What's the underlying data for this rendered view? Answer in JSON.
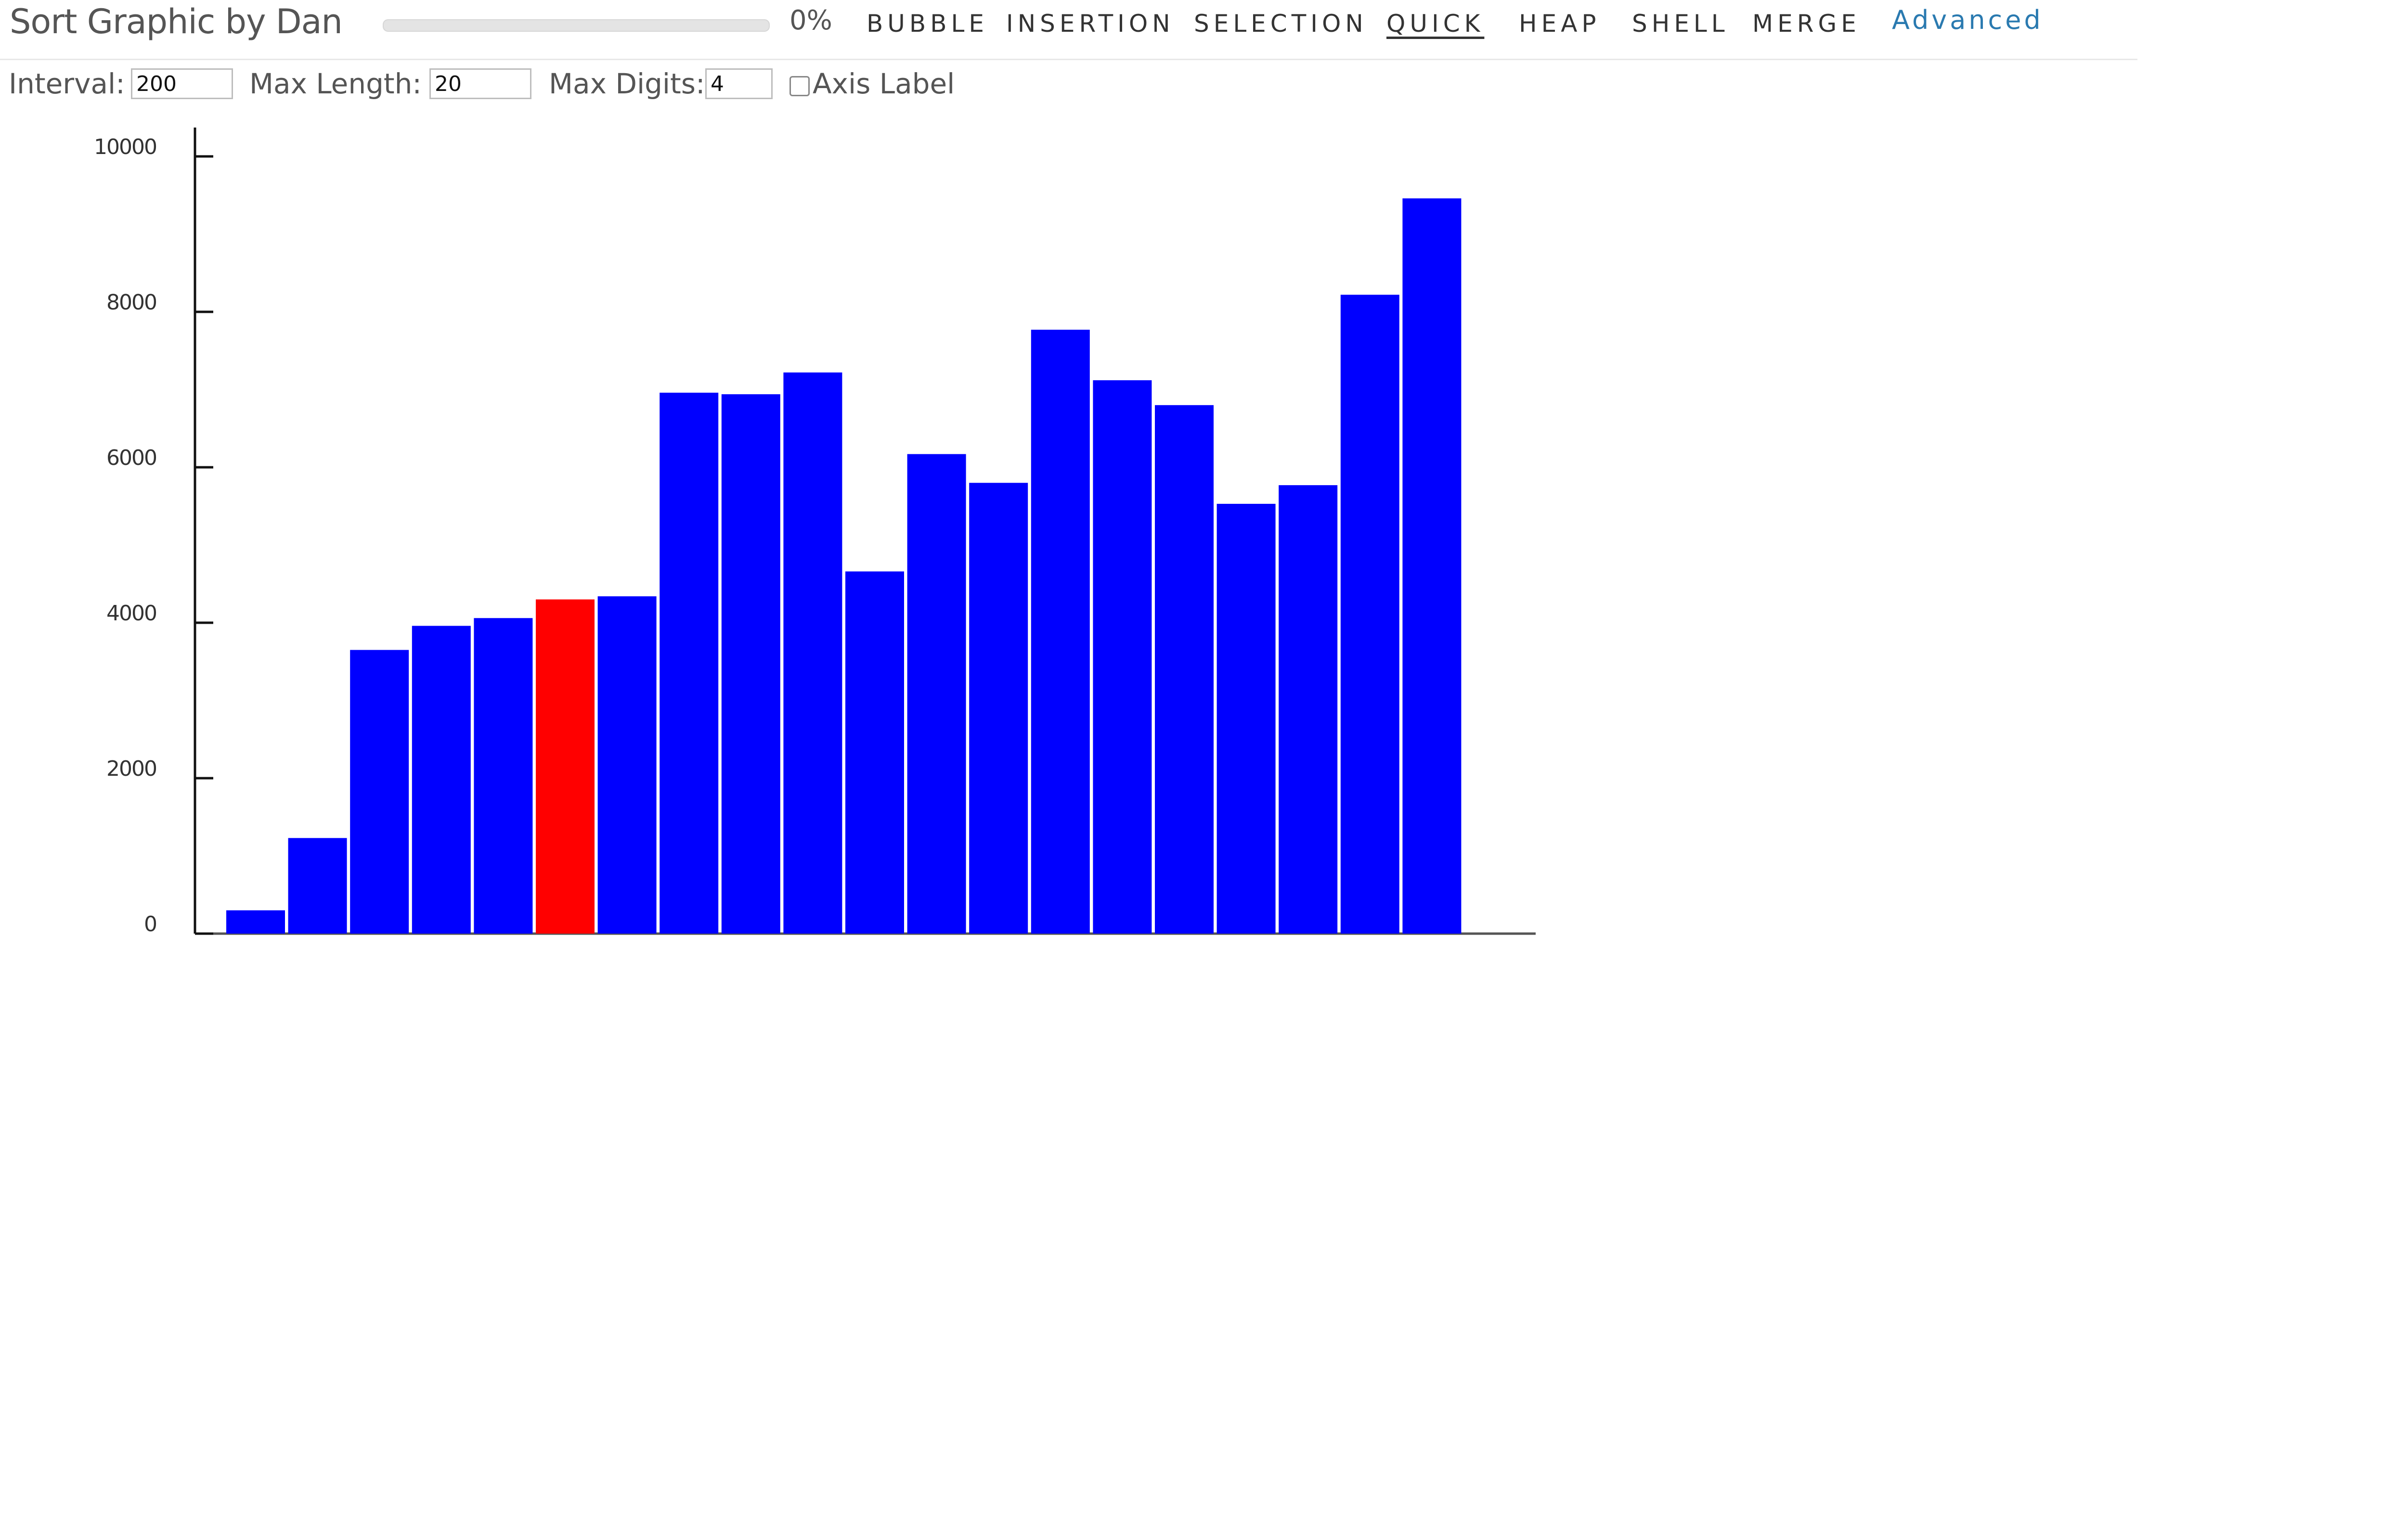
{
  "header": {
    "title": "Sort Graphic by Dan",
    "progress_value": 0,
    "progress_text": "0%",
    "nav": [
      {
        "label": "BUBBLE",
        "active": false
      },
      {
        "label": "INSERTION",
        "active": false
      },
      {
        "label": "SELECTION",
        "active": false
      },
      {
        "label": "QUICK",
        "active": true
      },
      {
        "label": "HEAP",
        "active": false
      },
      {
        "label": "SHELL",
        "active": false
      },
      {
        "label": "MERGE",
        "active": false
      }
    ],
    "advanced_label": "Advanced"
  },
  "controls": {
    "interval_label": "Interval:",
    "interval_value": "200",
    "max_length_label": "Max Length:",
    "max_length_value": "20",
    "max_digits_label": "Max Digits:",
    "max_digits_value": "4",
    "axis_label_text": "Axis Label",
    "axis_label_checked": false
  },
  "chart_data": {
    "type": "bar",
    "values": [
      300,
      1230,
      3650,
      3960,
      4060,
      4300,
      4340,
      6960,
      6940,
      7220,
      4660,
      6170,
      5800,
      7770,
      7120,
      6800,
      5530,
      5770,
      8220,
      9460
    ],
    "highlight_index": 5,
    "yticks": [
      "0",
      "2000",
      "4000",
      "6000",
      "8000",
      "10000"
    ],
    "ylim": [
      0,
      10000
    ],
    "bar_color": "#0000ff",
    "highlight_color": "#ff0000"
  }
}
